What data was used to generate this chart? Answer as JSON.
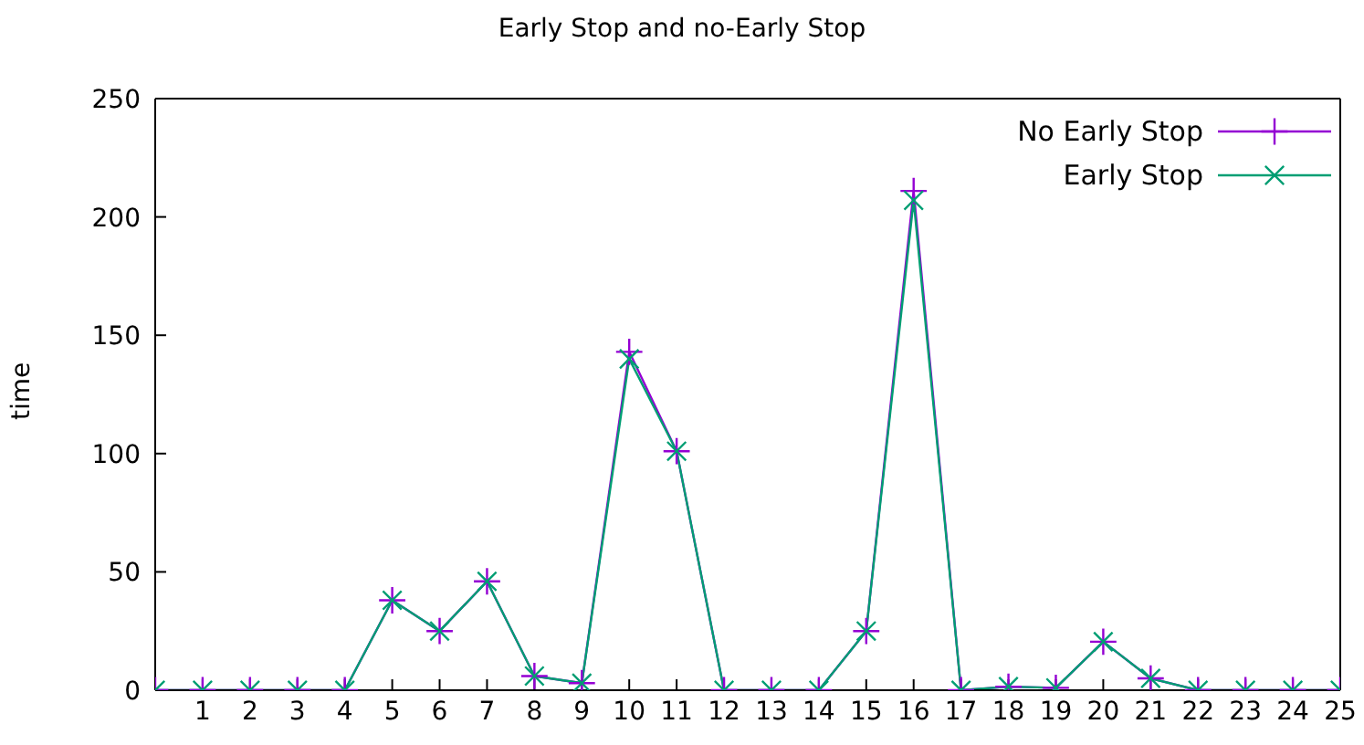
{
  "chart_data": {
    "type": "line",
    "title": "Early Stop and no-Early Stop",
    "ylabel": "time",
    "x": [
      0,
      1,
      2,
      3,
      4,
      5,
      6,
      7,
      8,
      9,
      10,
      11,
      12,
      13,
      14,
      15,
      16,
      17,
      18,
      19,
      20,
      21,
      22,
      23,
      24,
      25
    ],
    "series": [
      {
        "name": "No Early Stop",
        "color": "#9400d3",
        "values": [
          0,
          0,
          0,
          0,
          0,
          38,
          25,
          46,
          6,
          3,
          143,
          101,
          0,
          0,
          0,
          25,
          211,
          0,
          1.5,
          1,
          20.5,
          5,
          0,
          0,
          0,
          0
        ]
      },
      {
        "name": "Early Stop",
        "color": "#009e73",
        "values": [
          0,
          0,
          0,
          0,
          0,
          38,
          25,
          46,
          6,
          3,
          140,
          101,
          0,
          0,
          0,
          25,
          207,
          0,
          1.5,
          1,
          20.5,
          5,
          0,
          0,
          0,
          0
        ]
      }
    ],
    "xlim": [
      0,
      25
    ],
    "xticks": [
      1,
      2,
      3,
      4,
      5,
      6,
      7,
      8,
      9,
      10,
      11,
      12,
      13,
      14,
      15,
      16,
      17,
      18,
      19,
      20,
      21,
      22,
      23,
      24,
      25
    ],
    "ylim": [
      0,
      250
    ],
    "yticks": [
      0,
      50,
      100,
      150,
      200,
      250
    ],
    "grid": false,
    "legend": "top right",
    "marker": "cross",
    "line_style": "solid"
  }
}
